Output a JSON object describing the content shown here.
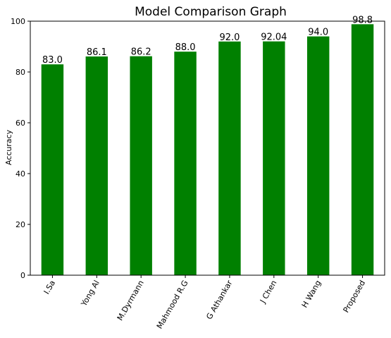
{
  "chart_data": {
    "type": "bar",
    "title": "Model Comparison Graph",
    "xlabel": "",
    "ylabel": "Accuracy",
    "categories": [
      "I.Sa",
      "Yong Al",
      "M.Dyrmann",
      "Mahmood R.G",
      "G Athankar",
      "J Chen",
      "H Wang",
      "Proposed"
    ],
    "values": [
      83.0,
      86.1,
      86.2,
      88.0,
      92.0,
      92.04,
      94.0,
      98.8
    ],
    "value_labels": [
      "83.0",
      "86.1",
      "86.2",
      "88.0",
      "92.0",
      "92.04",
      "94.0",
      "98.8"
    ],
    "ylim": [
      0,
      100
    ],
    "yticks": [
      0,
      20,
      40,
      60,
      80,
      100
    ],
    "bar_color": "#008000",
    "grid": false,
    "legend": "none"
  }
}
